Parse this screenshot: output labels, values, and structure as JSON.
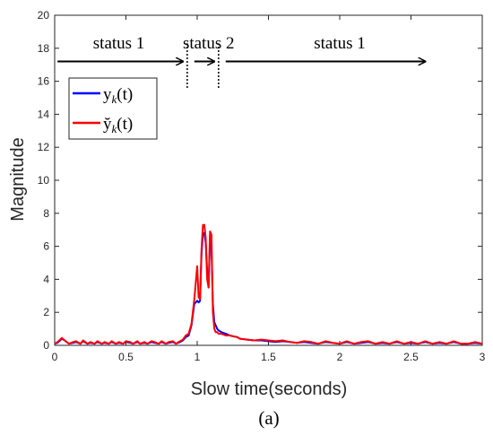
{
  "chart_data": {
    "type": "line",
    "xlabel": "Slow time(seconds)",
    "ylabel": "Magnitude",
    "xlim": [
      0,
      3
    ],
    "ylim": [
      0,
      20
    ],
    "xticks": [
      "0",
      "0.5",
      "1",
      "1.5",
      "2",
      "2.5",
      "3"
    ],
    "yticks": [
      "0",
      "2",
      "4",
      "6",
      "8",
      "10",
      "12",
      "14",
      "16",
      "18",
      "20"
    ],
    "grid": false,
    "legend_position": "top-left",
    "series": [
      {
        "name": "y_k(t)",
        "color": "#0000ff",
        "x": [
          0,
          0.02,
          0.05,
          0.07,
          0.1,
          0.13,
          0.15,
          0.18,
          0.2,
          0.23,
          0.25,
          0.28,
          0.3,
          0.33,
          0.35,
          0.38,
          0.4,
          0.43,
          0.45,
          0.48,
          0.5,
          0.53,
          0.55,
          0.58,
          0.6,
          0.63,
          0.65,
          0.68,
          0.7,
          0.73,
          0.75,
          0.78,
          0.8,
          0.83,
          0.85,
          0.88,
          0.9,
          0.92,
          0.94,
          0.96,
          0.98,
          1.0,
          1.01,
          1.02,
          1.03,
          1.04,
          1.05,
          1.06,
          1.07,
          1.08,
          1.09,
          1.1,
          1.11,
          1.12,
          1.13,
          1.14,
          1.15,
          1.17,
          1.2,
          1.23,
          1.25,
          1.28,
          1.3,
          1.35,
          1.4,
          1.45,
          1.5,
          1.55,
          1.6,
          1.65,
          1.7,
          1.75,
          1.8,
          1.85,
          1.9,
          1.95,
          2.0,
          2.05,
          2.1,
          2.15,
          2.2,
          2.25,
          2.3,
          2.35,
          2.4,
          2.45,
          2.5,
          2.55,
          2.6,
          2.65,
          2.7,
          2.75,
          2.8,
          2.85,
          2.9,
          2.95,
          3.0
        ],
        "values": [
          0.1,
          0.15,
          0.4,
          0.3,
          0.1,
          0.15,
          0.2,
          0.1,
          0.25,
          0.1,
          0.15,
          0.1,
          0.2,
          0.1,
          0.15,
          0.1,
          0.2,
          0.1,
          0.15,
          0.1,
          0.2,
          0.15,
          0.1,
          0.2,
          0.1,
          0.15,
          0.1,
          0.2,
          0.15,
          0.1,
          0.2,
          0.1,
          0.15,
          0.2,
          0.1,
          0.2,
          0.3,
          0.5,
          0.6,
          1.2,
          2.5,
          2.7,
          2.6,
          2.7,
          5.5,
          6.8,
          6.8,
          6.2,
          4.5,
          3.5,
          6.5,
          6.0,
          2.5,
          1.4,
          1.2,
          1.0,
          0.9,
          0.8,
          0.7,
          0.6,
          0.55,
          0.5,
          0.4,
          0.35,
          0.3,
          0.3,
          0.25,
          0.2,
          0.25,
          0.2,
          0.15,
          0.2,
          0.15,
          0.1,
          0.2,
          0.15,
          0.1,
          0.2,
          0.1,
          0.15,
          0.2,
          0.1,
          0.15,
          0.1,
          0.2,
          0.1,
          0.15,
          0.1,
          0.2,
          0.1,
          0.15,
          0.1,
          0.2,
          0.1,
          0.1,
          0.15,
          0.1
        ]
      },
      {
        "name": "y̆_k(t)",
        "color": "#ff0000",
        "x": [
          0,
          0.02,
          0.05,
          0.07,
          0.1,
          0.13,
          0.15,
          0.18,
          0.2,
          0.23,
          0.25,
          0.28,
          0.3,
          0.33,
          0.35,
          0.38,
          0.4,
          0.43,
          0.45,
          0.48,
          0.5,
          0.53,
          0.55,
          0.58,
          0.6,
          0.63,
          0.65,
          0.68,
          0.7,
          0.73,
          0.75,
          0.78,
          0.8,
          0.83,
          0.85,
          0.88,
          0.9,
          0.92,
          0.94,
          0.96,
          0.98,
          1.0,
          1.01,
          1.02,
          1.03,
          1.04,
          1.05,
          1.06,
          1.07,
          1.08,
          1.09,
          1.1,
          1.11,
          1.12,
          1.13,
          1.14,
          1.15,
          1.17,
          1.2,
          1.23,
          1.25,
          1.28,
          1.3,
          1.35,
          1.4,
          1.45,
          1.5,
          1.55,
          1.6,
          1.65,
          1.7,
          1.75,
          1.8,
          1.85,
          1.9,
          1.95,
          2.0,
          2.05,
          2.1,
          2.15,
          2.2,
          2.25,
          2.3,
          2.35,
          2.4,
          2.45,
          2.5,
          2.55,
          2.6,
          2.65,
          2.7,
          2.75,
          2.8,
          2.85,
          2.9,
          2.95,
          3.0
        ],
        "values": [
          0.1,
          0.2,
          0.45,
          0.3,
          0.1,
          0.2,
          0.25,
          0.1,
          0.3,
          0.1,
          0.2,
          0.1,
          0.25,
          0.1,
          0.2,
          0.1,
          0.25,
          0.1,
          0.2,
          0.1,
          0.25,
          0.2,
          0.1,
          0.25,
          0.1,
          0.2,
          0.1,
          0.25,
          0.2,
          0.1,
          0.25,
          0.1,
          0.2,
          0.25,
          0.1,
          0.25,
          0.35,
          0.6,
          0.7,
          1.3,
          2.8,
          4.8,
          2.9,
          2.8,
          5.8,
          7.3,
          7.3,
          6.5,
          4.0,
          3.5,
          6.9,
          6.7,
          2.0,
          1.0,
          0.8,
          0.8,
          0.7,
          0.7,
          0.6,
          0.6,
          0.55,
          0.5,
          0.4,
          0.35,
          0.3,
          0.35,
          0.3,
          0.25,
          0.3,
          0.2,
          0.15,
          0.25,
          0.2,
          0.1,
          0.25,
          0.15,
          0.1,
          0.25,
          0.1,
          0.2,
          0.25,
          0.1,
          0.2,
          0.1,
          0.25,
          0.1,
          0.2,
          0.1,
          0.25,
          0.1,
          0.2,
          0.1,
          0.25,
          0.1,
          0.1,
          0.2,
          0.1
        ]
      }
    ],
    "annotations": {
      "status_labels": [
        {
          "text": "status 1",
          "x": 0.45
        },
        {
          "text": "status 2",
          "x": 1.08
        },
        {
          "text": "status 1",
          "x": 2.0
        }
      ],
      "arrow_y": 17.2,
      "label_y": 18.0,
      "arrows": [
        {
          "x0": 0.02,
          "x1": 0.9
        },
        {
          "x0": 0.98,
          "x1": 1.12
        },
        {
          "x0": 1.2,
          "x1": 2.6
        }
      ],
      "dividers": [
        {
          "x": 0.93,
          "y0": 15.6,
          "y1": 18.3
        },
        {
          "x": 1.15,
          "y0": 15.6,
          "y1": 18.3
        }
      ]
    },
    "caption": "(a)"
  }
}
